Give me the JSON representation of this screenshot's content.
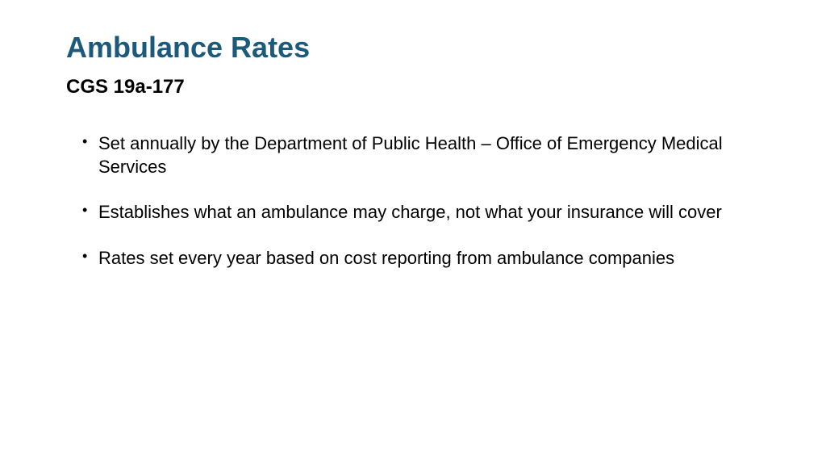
{
  "slide": {
    "title": "Ambulance Rates",
    "subtitle": "CGS 19a-177",
    "bullets": [
      "Set annually by the Department of Public Health – Office of Emergency Medical Services",
      "Establishes what an ambulance may charge, not what your insurance will cover",
      "Rates set every year based on cost reporting from ambulance companies"
    ],
    "colors": {
      "title_color": "#1b5a7a",
      "text_color": "#000000",
      "background": "#ffffff"
    },
    "typography": {
      "title_fontsize": 36,
      "subtitle_fontsize": 24,
      "body_fontsize": 22,
      "font_family": "Arial"
    }
  }
}
